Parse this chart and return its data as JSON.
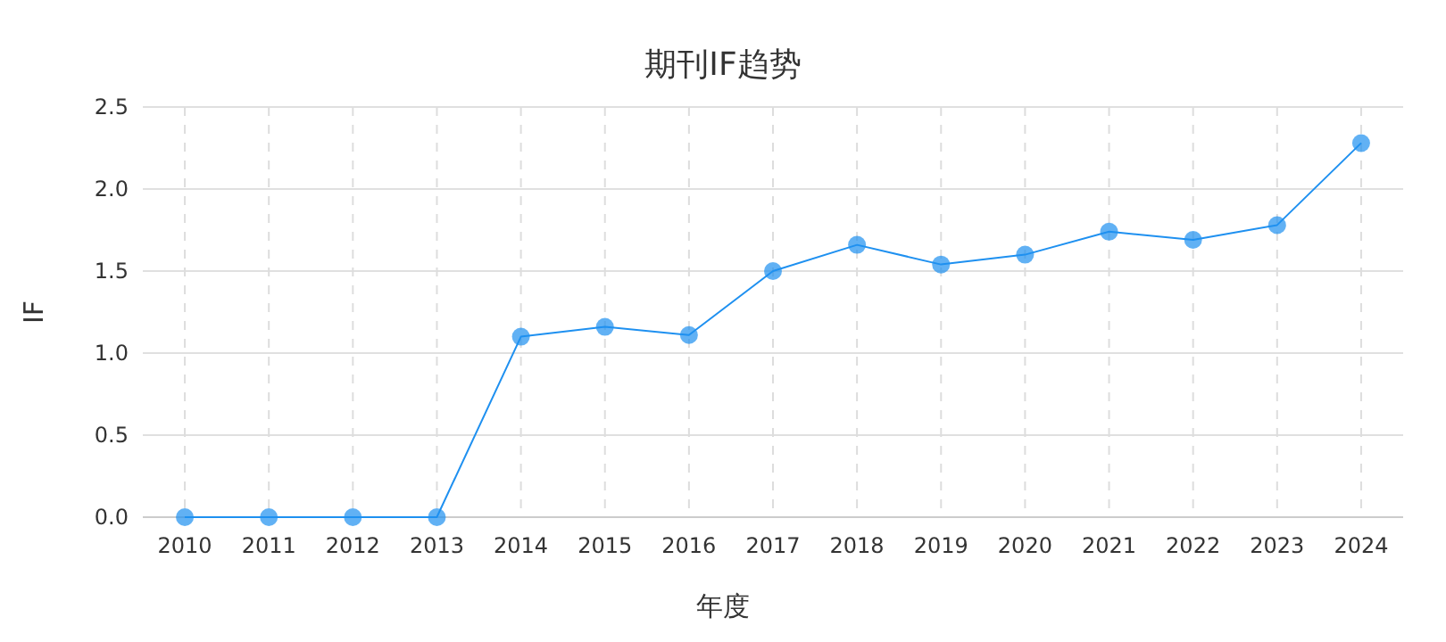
{
  "chart_data": {
    "type": "line",
    "title": "期刊IF趋势",
    "xlabel": "年度",
    "ylabel": "IF",
    "categories": [
      "2010",
      "2011",
      "2012",
      "2013",
      "2014",
      "2015",
      "2016",
      "2017",
      "2018",
      "2019",
      "2020",
      "2021",
      "2022",
      "2023",
      "2024"
    ],
    "series": [
      {
        "color": "#1e90f0",
        "values": [
          0,
          0,
          0,
          0,
          1.1,
          1.16,
          1.11,
          1.5,
          1.66,
          1.54,
          1.6,
          1.74,
          1.69,
          1.78,
          2.28
        ]
      }
    ],
    "ylim": [
      0,
      2.5
    ],
    "yticks": [
      {
        "value": 0,
        "label": "0.0"
      },
      {
        "value": 0.5,
        "label": "0.5"
      },
      {
        "value": 1,
        "label": "1.0"
      },
      {
        "value": 1.5,
        "label": "1.5"
      },
      {
        "value": 2,
        "label": "2.0"
      },
      {
        "value": 2.5,
        "label": "2.5"
      }
    ],
    "grid": true,
    "marker": "circle",
    "line_style": "solid"
  }
}
